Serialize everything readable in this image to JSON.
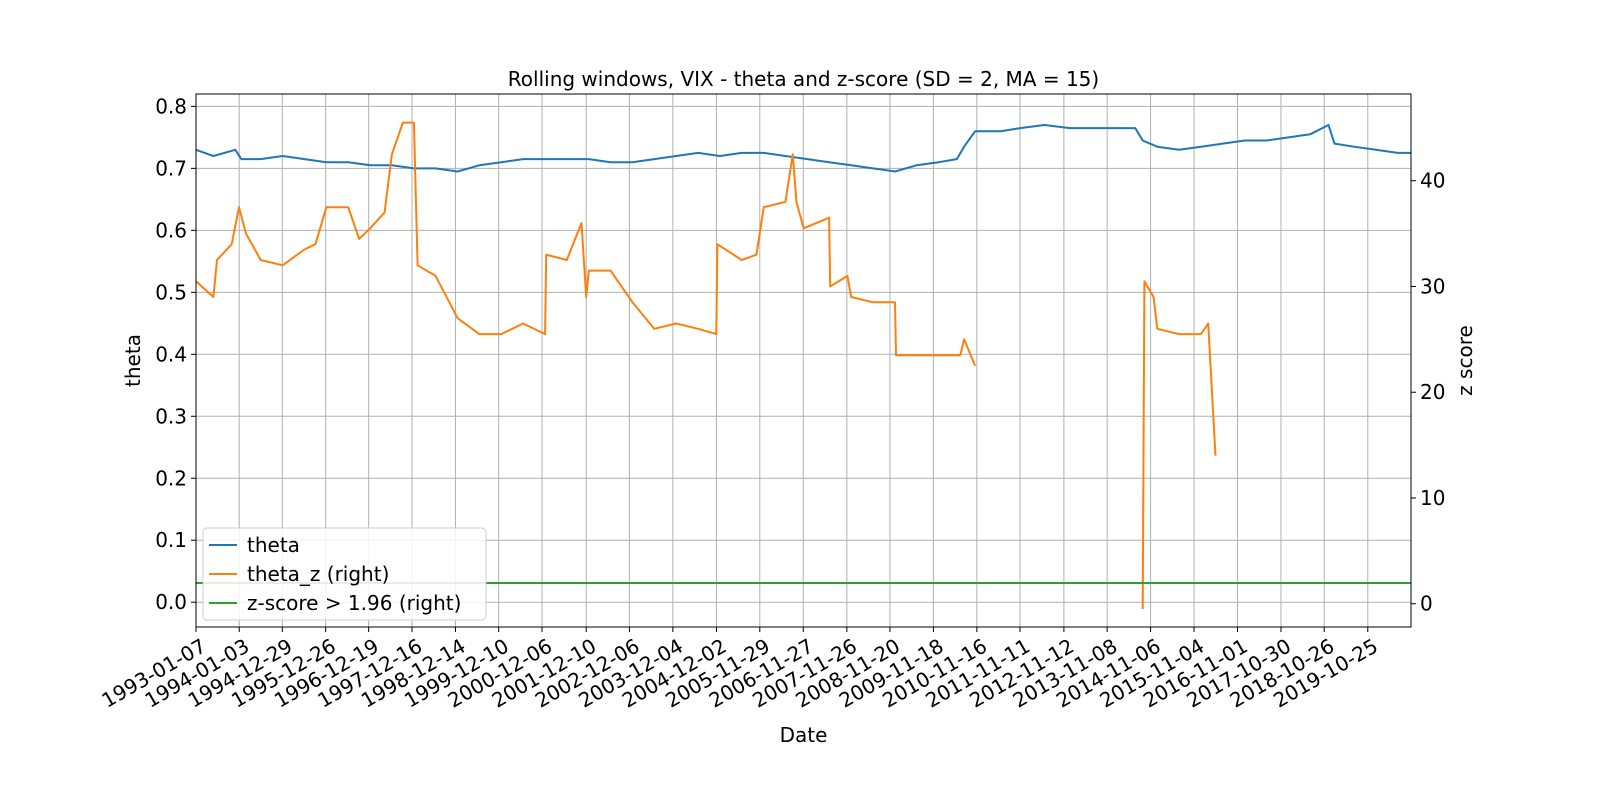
{
  "chart_data": {
    "type": "line",
    "title": "Rolling windows, VIX - theta and z-score (SD = 2, MA = 15)",
    "xlabel": "Date",
    "ylabel": "theta",
    "y2label": "z score",
    "grid": true,
    "legend_position": "lower-left",
    "xlim": [
      "1993-01-07",
      "2020-10-20"
    ],
    "ylim": [
      -0.04,
      0.82
    ],
    "y2lim": [
      -2.2,
      48.2
    ],
    "x_tick_labels": [
      "1993-01-07",
      "1994-01-03",
      "1994-12-29",
      "1995-12-26",
      "1996-12-19",
      "1997-12-16",
      "1998-12-14",
      "1999-12-10",
      "2000-12-06",
      "2001-12-10",
      "2002-12-06",
      "2003-12-04",
      "2004-12-02",
      "2005-11-29",
      "2006-11-27",
      "2007-11-26",
      "2008-11-20",
      "2009-11-18",
      "2010-11-16",
      "2011-11-11",
      "2012-11-12",
      "2013-11-08",
      "2014-11-06",
      "2015-11-04",
      "2016-11-01",
      "2017-10-30",
      "2018-10-26",
      "2019-10-25"
    ],
    "y_ticks": [
      0.0,
      0.1,
      0.2,
      0.3,
      0.4,
      0.5,
      0.6,
      0.7,
      0.8
    ],
    "y_tick_labels": [
      "0.0",
      "0.1",
      "0.2",
      "0.3",
      "0.4",
      "0.5",
      "0.6",
      "0.7",
      "0.8"
    ],
    "y2_ticks": [
      0,
      10,
      20,
      30,
      40
    ],
    "y2_tick_labels": [
      "0",
      "10",
      "20",
      "30",
      "40"
    ],
    "series": [
      {
        "name": "theta",
        "axis": "left",
        "color": "#1f77b4",
        "points": [
          [
            "1993-01-07",
            0.73
          ],
          [
            "1993-06-01",
            0.72
          ],
          [
            "1993-12-01",
            0.73
          ],
          [
            "1994-01-20",
            0.715
          ],
          [
            "1994-07-01",
            0.715
          ],
          [
            "1995-01-01",
            0.72
          ],
          [
            "1995-07-01",
            0.715
          ],
          [
            "1996-01-01",
            0.71
          ],
          [
            "1996-07-01",
            0.71
          ],
          [
            "1997-01-01",
            0.705
          ],
          [
            "1997-07-01",
            0.705
          ],
          [
            "1998-01-01",
            0.7
          ],
          [
            "1998-07-01",
            0.7
          ],
          [
            "1999-01-01",
            0.695
          ],
          [
            "1999-07-01",
            0.705
          ],
          [
            "2000-01-01",
            0.71
          ],
          [
            "2000-07-01",
            0.715
          ],
          [
            "2001-01-01",
            0.715
          ],
          [
            "2001-07-01",
            0.715
          ],
          [
            "2002-01-01",
            0.715
          ],
          [
            "2002-07-01",
            0.71
          ],
          [
            "2003-01-01",
            0.71
          ],
          [
            "2003-07-01",
            0.715
          ],
          [
            "2004-01-01",
            0.72
          ],
          [
            "2004-07-01",
            0.725
          ],
          [
            "2005-01-01",
            0.72
          ],
          [
            "2005-07-01",
            0.725
          ],
          [
            "2006-01-01",
            0.725
          ],
          [
            "2006-07-01",
            0.72
          ],
          [
            "2007-01-01",
            0.715
          ],
          [
            "2007-07-01",
            0.71
          ],
          [
            "2008-01-01",
            0.705
          ],
          [
            "2008-07-01",
            0.7
          ],
          [
            "2009-01-01",
            0.695
          ],
          [
            "2009-07-01",
            0.705
          ],
          [
            "2010-01-01",
            0.71
          ],
          [
            "2010-06-01",
            0.715
          ],
          [
            "2010-08-01",
            0.735
          ],
          [
            "2010-11-01",
            0.76
          ],
          [
            "2011-06-01",
            0.76
          ],
          [
            "2011-11-15",
            0.765
          ],
          [
            "2012-06-01",
            0.77
          ],
          [
            "2013-01-01",
            0.765
          ],
          [
            "2013-06-01",
            0.765
          ],
          [
            "2014-01-01",
            0.765
          ],
          [
            "2014-07-01",
            0.765
          ],
          [
            "2014-09-01",
            0.745
          ],
          [
            "2015-01-01",
            0.735
          ],
          [
            "2015-07-01",
            0.73
          ],
          [
            "2016-01-01",
            0.735
          ],
          [
            "2016-07-01",
            0.74
          ],
          [
            "2017-01-01",
            0.745
          ],
          [
            "2017-07-01",
            0.745
          ],
          [
            "2018-01-01",
            0.75
          ],
          [
            "2018-07-01",
            0.755
          ],
          [
            "2018-12-01",
            0.77
          ],
          [
            "2019-01-20",
            0.74
          ],
          [
            "2019-07-01",
            0.735
          ],
          [
            "2020-01-01",
            0.73
          ],
          [
            "2020-07-01",
            0.725
          ],
          [
            "2020-10-20",
            0.725
          ]
        ]
      },
      {
        "name": "theta_z (right)",
        "axis": "right",
        "color": "#ff7f0e",
        "points": [
          [
            "1993-01-07",
            30.5
          ],
          [
            "1993-06-01",
            29.0
          ],
          [
            "1993-07-01",
            32.5
          ],
          [
            "1993-11-01",
            34.0
          ],
          [
            "1994-01-01",
            37.5
          ],
          [
            "1994-03-01",
            35.0
          ],
          [
            "1994-07-01",
            32.5
          ],
          [
            "1995-01-01",
            32.0
          ],
          [
            "1995-07-01",
            33.5
          ],
          [
            "1995-10-01",
            34.0
          ],
          [
            "1996-01-01",
            37.5
          ],
          [
            "1996-07-01",
            37.5
          ],
          [
            "1996-10-01",
            34.5
          ],
          [
            "1997-01-01",
            35.5
          ],
          [
            "1997-05-01",
            37.0
          ],
          [
            "1997-07-01",
            42.5
          ],
          [
            "1997-10-01",
            45.5
          ],
          [
            "1998-01-01",
            45.5
          ],
          [
            "1998-02-01",
            32.0
          ],
          [
            "1998-07-01",
            31.0
          ],
          [
            "1999-01-01",
            27.0
          ],
          [
            "1999-07-01",
            25.5
          ],
          [
            "2000-01-01",
            25.5
          ],
          [
            "2000-07-01",
            26.5
          ],
          [
            "2001-01-01",
            25.5
          ],
          [
            "2001-01-10",
            33.0
          ],
          [
            "2001-07-01",
            32.5
          ],
          [
            "2001-11-01",
            36.0
          ],
          [
            "2001-12-10",
            29.0
          ],
          [
            "2002-01-01",
            31.5
          ],
          [
            "2002-07-01",
            31.5
          ],
          [
            "2003-01-01",
            28.5
          ],
          [
            "2003-07-01",
            26.0
          ],
          [
            "2004-01-01",
            26.5
          ],
          [
            "2004-07-01",
            26.0
          ],
          [
            "2004-12-01",
            25.5
          ],
          [
            "2004-12-10",
            34.0
          ],
          [
            "2005-07-01",
            32.5
          ],
          [
            "2005-11-01",
            33.0
          ],
          [
            "2006-01-01",
            37.5
          ],
          [
            "2006-07-01",
            38.0
          ],
          [
            "2006-09-01",
            42.5
          ],
          [
            "2006-10-01",
            38.0
          ],
          [
            "2006-12-01",
            35.5
          ],
          [
            "2007-07-01",
            36.5
          ],
          [
            "2007-07-10",
            30.0
          ],
          [
            "2007-12-01",
            31.0
          ],
          [
            "2008-01-01",
            29.0
          ],
          [
            "2008-07-01",
            28.5
          ],
          [
            "2009-01-01",
            28.5
          ],
          [
            "2009-01-10",
            23.5
          ],
          [
            "2009-07-01",
            23.5
          ],
          [
            "2010-01-01",
            23.5
          ],
          [
            "2010-07-01",
            23.5
          ],
          [
            "2010-08-01",
            25.0
          ],
          [
            "2010-11-01",
            22.5
          ],
          [
            "2014-09-01",
            -0.5
          ],
          [
            "2014-09-15",
            30.5
          ],
          [
            "2014-12-01",
            29.0
          ],
          [
            "2015-01-01",
            26.0
          ],
          [
            "2015-07-01",
            25.5
          ],
          [
            "2016-01-01",
            25.5
          ],
          [
            "2016-03-01",
            26.5
          ],
          [
            "2016-05-01",
            14.0
          ]
        ],
        "gaps_after": [
          "2010-11-01"
        ]
      },
      {
        "name": "z-score > 1.96 (right)",
        "axis": "right",
        "color": "#2ca02c",
        "points": [
          [
            "1993-01-07",
            1.96
          ],
          [
            "2020-10-20",
            1.96
          ]
        ]
      }
    ]
  }
}
